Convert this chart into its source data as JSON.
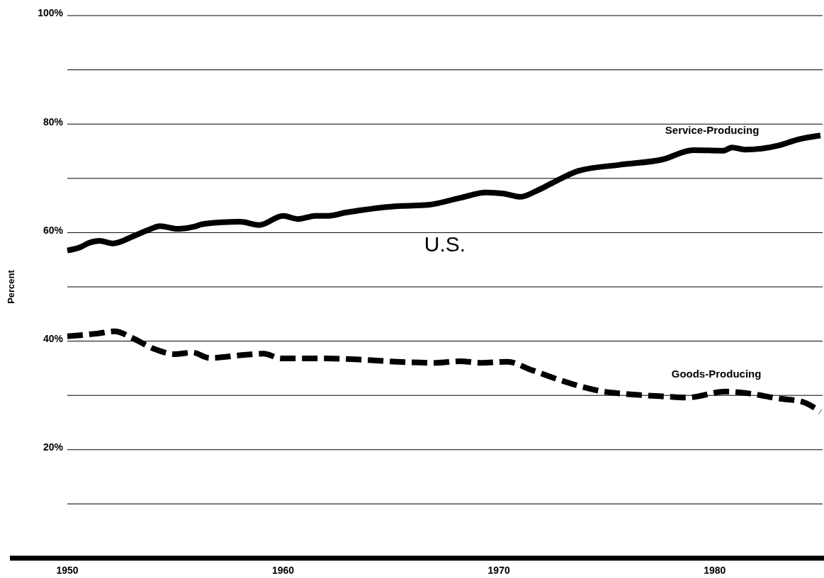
{
  "chart_data": {
    "type": "line",
    "ylabel": "Percent",
    "annotations": [
      "U.S."
    ],
    "xlim": [
      1950,
      1985
    ],
    "xticks": [
      1950,
      1960,
      1970,
      1980
    ],
    "ylim": [
      0,
      100
    ],
    "yticks": [
      {
        "value": 0,
        "label": null
      },
      {
        "value": 10,
        "label": null
      },
      {
        "value": 20,
        "label": "20%"
      },
      {
        "value": 30,
        "label": null
      },
      {
        "value": 40,
        "label": "40%"
      },
      {
        "value": 50,
        "label": null
      },
      {
        "value": 60,
        "label": "60%"
      },
      {
        "value": 70,
        "label": null
      },
      {
        "value": 80,
        "label": "80%"
      },
      {
        "value": 90,
        "label": null
      },
      {
        "value": 100,
        "label": "100%"
      }
    ],
    "grid": "y",
    "series": [
      {
        "name": "Service-Producing",
        "color": "#000000",
        "line_style": "solid",
        "x": [
          1950.0,
          1950.6,
          1951.0,
          1951.5,
          1952.1,
          1953.1,
          1953.7,
          1954.3,
          1955.1,
          1955.9,
          1956.2,
          1957.2,
          1958.0,
          1958.9,
          1960.0,
          1960.7,
          1961.5,
          1962.1,
          1962.9,
          1963.4,
          1964.5,
          1965.5,
          1966.7,
          1968.2,
          1969.4,
          1970.2,
          1971.0,
          1971.7,
          1972.5,
          1973.7,
          1975.6,
          1977.6,
          1979.0,
          1980.4,
          1980.8,
          1981.4,
          1983.0,
          1983.9,
          1984.9
        ],
        "values": [
          56.7,
          57.3,
          58.1,
          58.5,
          58.0,
          59.4,
          60.4,
          61.2,
          60.7,
          61.1,
          61.5,
          61.9,
          62.0,
          61.4,
          63.1,
          62.5,
          63.1,
          63.1,
          63.7,
          64.0,
          64.6,
          64.9,
          65.1,
          66.4,
          67.4,
          67.2,
          66.6,
          67.6,
          69.2,
          71.4,
          72.5,
          73.5,
          75.2,
          75.1,
          75.7,
          75.3,
          76.1,
          77.2,
          77.9
        ]
      },
      {
        "name": "Goods-Producing",
        "color": "#000000",
        "line_style": "dashed",
        "x": [
          1950.0,
          1951.4,
          1952.2,
          1953.0,
          1954.0,
          1955.0,
          1955.8,
          1956.6,
          1958.3,
          1959.1,
          1959.9,
          1962.0,
          1963.6,
          1965.3,
          1967.1,
          1968.2,
          1969.2,
          1970.4,
          1971.5,
          1973.4,
          1974.7,
          1976.1,
          1977.7,
          1978.7,
          1980.5,
          1981.5,
          1983.0,
          1984.0,
          1984.9
        ],
        "values": [
          40.9,
          41.4,
          41.8,
          40.6,
          38.6,
          37.6,
          37.9,
          36.9,
          37.5,
          37.7,
          36.8,
          36.8,
          36.6,
          36.2,
          36.0,
          36.3,
          36.0,
          36.2,
          34.7,
          32.1,
          30.8,
          30.2,
          29.8,
          29.6,
          30.7,
          30.4,
          29.4,
          28.9,
          27.0
        ]
      }
    ]
  }
}
